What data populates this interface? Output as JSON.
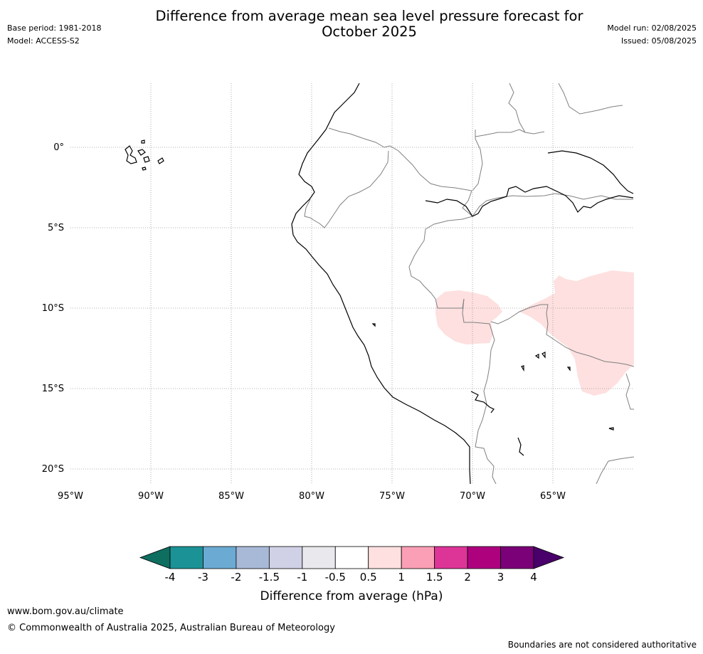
{
  "header": {
    "base_period": "Base period: 1981-2018",
    "model": "Model: ACCESS-S2",
    "title_line1": "Difference from average mean sea level pressure forecast for",
    "title_line2": "October 2025",
    "model_run": "Model run: 02/08/2025",
    "issued": "Issued: 05/08/2025"
  },
  "map": {
    "lat_labels": [
      "0°",
      "5°S",
      "10°S",
      "15°S",
      "20°S"
    ],
    "lon_labels": [
      "95°W",
      "90°W",
      "85°W",
      "80°W",
      "75°W",
      "70°W",
      "65°W"
    ],
    "anomaly_fill_color": "#fde0df",
    "coast_color": "#000000",
    "border_color": "#808080"
  },
  "colorbar": {
    "label": "Difference from average (hPa)",
    "ticks": [
      "-4",
      "-3",
      "-2",
      "-1.5",
      "-1",
      "-0.5",
      "0.5",
      "1",
      "1.5",
      "2",
      "3",
      "4"
    ],
    "colors": [
      "#0e6e60",
      "#1b9296",
      "#6baad2",
      "#a8b9d8",
      "#d0d1e6",
      "#e9e8ec",
      "#ffffff",
      "#fde0df",
      "#fa9fb5",
      "#dd3497",
      "#ae017e",
      "#7a0177",
      "#49006a"
    ]
  },
  "footer": {
    "url": "www.bom.gov.au/climate",
    "copyright": "© Commonwealth of Australia 2025, Australian Bureau of Meteorology",
    "disclaimer": "Boundaries are not considered authoritative"
  }
}
